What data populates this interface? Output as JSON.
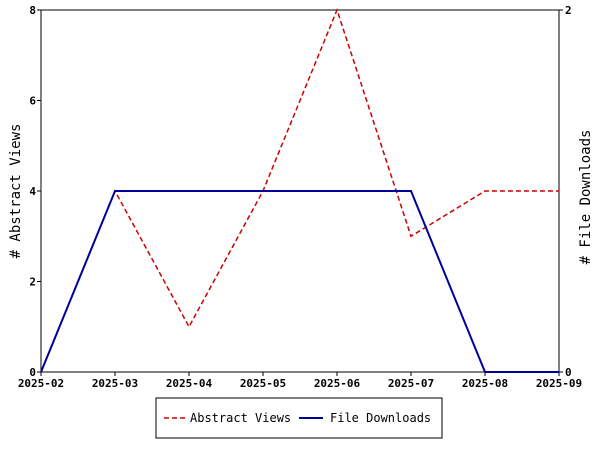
{
  "chart_data": {
    "type": "line",
    "x": [
      "2025-02",
      "2025-03",
      "2025-04",
      "2025-05",
      "2025-06",
      "2025-07",
      "2025-08",
      "2025-09"
    ],
    "series": [
      {
        "name": "Abstract Views",
        "axis": "left",
        "color": "#cc0000",
        "dash": "dashed",
        "values": [
          0,
          4,
          1,
          4,
          8,
          3,
          4,
          4
        ]
      },
      {
        "name": "File Downloads",
        "axis": "right",
        "color": "#000099",
        "dash": "solid",
        "values": [
          0,
          1,
          1,
          1,
          1,
          1,
          0,
          0
        ]
      }
    ],
    "ylabel_left": "# Abstract Views",
    "ylabel_right": "# File Downloads",
    "ylim_left": [
      0,
      8
    ],
    "yticks_left": [
      0,
      2,
      4,
      6,
      8
    ],
    "ylim_right": [
      0,
      2
    ],
    "yticks_right": [
      0,
      2
    ],
    "grid": false,
    "legend_position": "bottom-center"
  }
}
